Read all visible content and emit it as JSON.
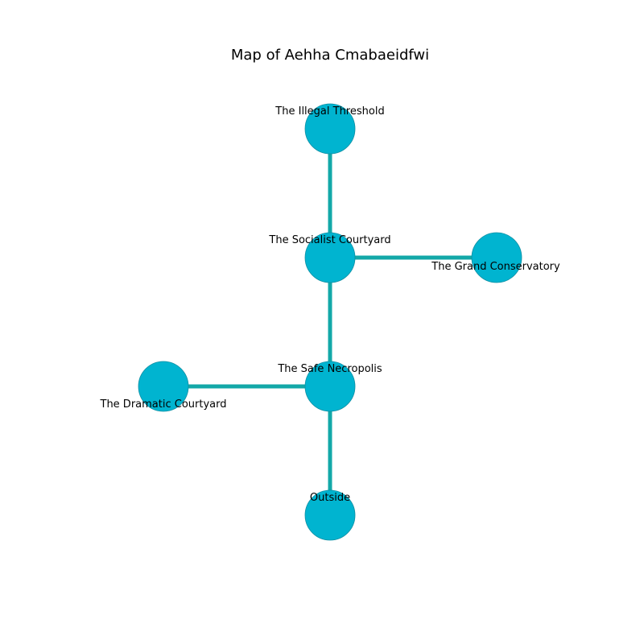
{
  "title": "Map of Aehha Cmabaeidfwi",
  "colors": {
    "node_fill": "#00b4d0",
    "node_stroke": "#0f8fa3",
    "edge": "#13a8a8",
    "label": "#000000"
  },
  "nodes": [
    {
      "id": "illegal-threshold",
      "label": "The Illegal Threshold"
    },
    {
      "id": "socialist-courtyard",
      "label": "The Socialist Courtyard"
    },
    {
      "id": "grand-conservatory",
      "label": "The Grand Conservatory"
    },
    {
      "id": "safe-necropolis",
      "label": "The Safe Necropolis"
    },
    {
      "id": "dramatic-courtyard",
      "label": "The Dramatic Courtyard"
    },
    {
      "id": "outside",
      "label": "Outside"
    }
  ],
  "edges": [
    {
      "from": "illegal-threshold",
      "to": "socialist-courtyard"
    },
    {
      "from": "socialist-courtyard",
      "to": "grand-conservatory"
    },
    {
      "from": "socialist-courtyard",
      "to": "safe-necropolis"
    },
    {
      "from": "safe-necropolis",
      "to": "dramatic-courtyard"
    },
    {
      "from": "safe-necropolis",
      "to": "outside"
    }
  ]
}
